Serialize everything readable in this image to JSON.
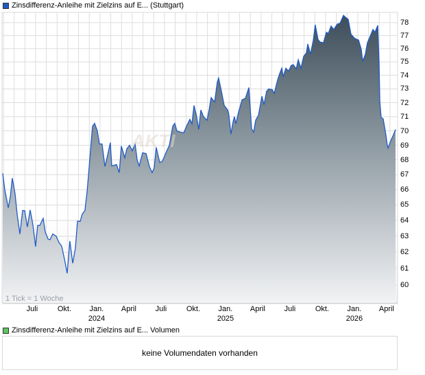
{
  "legend": {
    "price_label": "Zinsdifferenz-Anleihe mit Zielzins auf E... (Stuttgart)",
    "price_color": "#1f5bc6",
    "volume_label": "Zinsdifferenz-Anleihe mit Zielzins auf E... Volumen",
    "volume_color": "#5cc65c"
  },
  "watermark": "AKTIE",
  "tick_note": "1 Tick = 1 Woche",
  "volume_message": "keine Volumendaten vorhanden",
  "chart_data": {
    "type": "area",
    "title": "Zinsdifferenz-Anleihe mit Zielzins auf E... (Stuttgart)",
    "xlabel": "",
    "ylabel": "",
    "y_scale": "log",
    "ylim": [
      58.8,
      78.9
    ],
    "y_ticks": [
      60,
      61,
      62,
      63,
      64,
      65,
      66,
      67,
      68,
      69,
      70,
      71,
      72,
      73,
      74,
      75,
      76,
      77,
      78
    ],
    "x_unit": "decimal year",
    "xlim": [
      2023.245,
      2026.3
    ],
    "x_ticks": [
      {
        "t": 2023.5,
        "label": "Juli",
        "year": ""
      },
      {
        "t": 2023.75,
        "label": "Okt.",
        "year": ""
      },
      {
        "t": 2024.0,
        "label": "Jan.",
        "year": "2024"
      },
      {
        "t": 2024.25,
        "label": "April",
        "year": ""
      },
      {
        "t": 2024.5,
        "label": "Juli",
        "year": ""
      },
      {
        "t": 2024.75,
        "label": "Okt.",
        "year": ""
      },
      {
        "t": 2025.0,
        "label": "Jan.",
        "year": "2025"
      },
      {
        "t": 2025.25,
        "label": "April",
        "year": ""
      },
      {
        "t": 2025.5,
        "label": "Juli",
        "year": ""
      },
      {
        "t": 2025.75,
        "label": "Okt.",
        "year": ""
      },
      {
        "t": 2026.0,
        "label": "Jan.",
        "year": "2026"
      },
      {
        "t": 2026.25,
        "label": "April",
        "year": ""
      }
    ],
    "grid": true,
    "legend": "top-left",
    "series": [
      {
        "name": "Zinsdifferenz-Anleihe mit Zielzins auf E... (Stuttgart)",
        "color": "#1f5bc6",
        "points": [
          [
            2023.245,
            67.09
          ],
          [
            2023.261,
            66.0
          ],
          [
            2023.288,
            64.82
          ],
          [
            2023.304,
            65.55
          ],
          [
            2023.319,
            66.77
          ],
          [
            2023.341,
            65.73
          ],
          [
            2023.357,
            64.36
          ],
          [
            2023.378,
            63.14
          ],
          [
            2023.399,
            64.64
          ],
          [
            2023.415,
            64.64
          ],
          [
            2023.436,
            63.59
          ],
          [
            2023.458,
            64.68
          ],
          [
            2023.479,
            63.73
          ],
          [
            2023.5,
            62.35
          ],
          [
            2023.516,
            63.68
          ],
          [
            2023.532,
            63.68
          ],
          [
            2023.559,
            64.14
          ],
          [
            2023.575,
            63.27
          ],
          [
            2023.596,
            62.83
          ],
          [
            2023.612,
            62.78
          ],
          [
            2023.633,
            63.14
          ],
          [
            2023.66,
            63.0
          ],
          [
            2023.681,
            62.61
          ],
          [
            2023.702,
            62.39
          ],
          [
            2023.724,
            61.56
          ],
          [
            2023.745,
            60.71
          ],
          [
            2023.766,
            62.7
          ],
          [
            2023.788,
            61.32
          ],
          [
            2023.809,
            62.26
          ],
          [
            2023.825,
            63.95
          ],
          [
            2023.846,
            63.95
          ],
          [
            2023.862,
            64.41
          ],
          [
            2023.883,
            64.64
          ],
          [
            2023.899,
            65.86
          ],
          [
            2023.91,
            66.91
          ],
          [
            2023.931,
            69.23
          ],
          [
            2023.942,
            70.33
          ],
          [
            2023.958,
            70.53
          ],
          [
            2023.979,
            70.0
          ],
          [
            2023.995,
            69.09
          ],
          [
            2024.016,
            69.09
          ],
          [
            2024.038,
            67.55
          ],
          [
            2024.054,
            68.14
          ],
          [
            2024.08,
            69.18
          ],
          [
            2024.091,
            67.59
          ],
          [
            2024.128,
            67.68
          ],
          [
            2024.149,
            67.14
          ],
          [
            2024.165,
            68.95
          ],
          [
            2024.192,
            68.14
          ],
          [
            2024.208,
            68.76
          ],
          [
            2024.229,
            69.0
          ],
          [
            2024.25,
            68.62
          ],
          [
            2024.272,
            69.09
          ],
          [
            2024.288,
            68.0
          ],
          [
            2024.304,
            67.59
          ],
          [
            2024.33,
            68.48
          ],
          [
            2024.357,
            68.43
          ],
          [
            2024.383,
            67.55
          ],
          [
            2024.404,
            67.14
          ],
          [
            2024.42,
            67.45
          ],
          [
            2024.436,
            68.86
          ],
          [
            2024.463,
            67.82
          ],
          [
            2024.484,
            67.91
          ],
          [
            2024.511,
            68.48
          ],
          [
            2024.538,
            69.0
          ],
          [
            2024.564,
            70.33
          ],
          [
            2024.58,
            70.53
          ],
          [
            2024.596,
            70.0
          ],
          [
            2024.623,
            69.91
          ],
          [
            2024.649,
            69.86
          ],
          [
            2024.671,
            70.33
          ],
          [
            2024.697,
            70.81
          ],
          [
            2024.713,
            70.5
          ],
          [
            2024.729,
            71.81
          ],
          [
            2024.75,
            71.0
          ],
          [
            2024.766,
            70.1
          ],
          [
            2024.782,
            71.48
          ],
          [
            2024.803,
            71.0
          ],
          [
            2024.83,
            70.75
          ],
          [
            2024.846,
            71.48
          ],
          [
            2024.862,
            72.37
          ],
          [
            2024.889,
            72.05
          ],
          [
            2024.91,
            73.5
          ],
          [
            2024.92,
            73.8
          ],
          [
            2024.942,
            72.84
          ],
          [
            2024.963,
            71.81
          ],
          [
            2024.99,
            71.48
          ],
          [
            2025.0,
            71.14
          ],
          [
            2025.016,
            69.77
          ],
          [
            2025.032,
            70.65
          ],
          [
            2025.043,
            71.0
          ],
          [
            2025.054,
            70.5
          ],
          [
            2025.075,
            71.33
          ],
          [
            2025.102,
            72.21
          ],
          [
            2025.128,
            72.32
          ],
          [
            2025.155,
            73.1
          ],
          [
            2025.176,
            70.15
          ],
          [
            2025.192,
            69.91
          ],
          [
            2025.208,
            70.75
          ],
          [
            2025.229,
            71.1
          ],
          [
            2025.256,
            72.47
          ],
          [
            2025.272,
            71.86
          ],
          [
            2025.293,
            72.84
          ],
          [
            2025.309,
            73.0
          ],
          [
            2025.336,
            72.95
          ],
          [
            2025.352,
            72.68
          ],
          [
            2025.373,
            73.5
          ],
          [
            2025.389,
            74.0
          ],
          [
            2025.41,
            74.53
          ],
          [
            2025.421,
            73.9
          ],
          [
            2025.442,
            74.53
          ],
          [
            2025.463,
            74.32
          ],
          [
            2025.484,
            74.74
          ],
          [
            2025.5,
            74.79
          ],
          [
            2025.522,
            74.47
          ],
          [
            2025.538,
            75.16
          ],
          [
            2025.559,
            74.53
          ],
          [
            2025.58,
            75.42
          ],
          [
            2025.601,
            75.68
          ],
          [
            2025.612,
            76.35
          ],
          [
            2025.633,
            75.58
          ],
          [
            2025.654,
            76.6
          ],
          [
            2025.67,
            77.84
          ],
          [
            2025.692,
            76.7
          ],
          [
            2025.708,
            76.5
          ],
          [
            2025.734,
            76.45
          ],
          [
            2025.756,
            77.26
          ],
          [
            2025.771,
            77.16
          ],
          [
            2025.793,
            77.74
          ],
          [
            2025.814,
            77.47
          ],
          [
            2025.841,
            77.89
          ],
          [
            2025.862,
            77.95
          ],
          [
            2025.889,
            78.58
          ],
          [
            2025.905,
            78.42
          ],
          [
            2025.926,
            78.26
          ],
          [
            2025.947,
            77.11
          ],
          [
            2025.974,
            76.8
          ],
          [
            2026.006,
            76.65
          ],
          [
            2026.027,
            75.95
          ],
          [
            2026.038,
            75.05
          ],
          [
            2026.059,
            75.58
          ],
          [
            2026.075,
            76.45
          ],
          [
            2026.096,
            76.95
          ],
          [
            2026.118,
            77.47
          ],
          [
            2026.134,
            77.26
          ],
          [
            2026.155,
            77.79
          ],
          [
            2026.165,
            74.89
          ],
          [
            2026.171,
            72.1
          ],
          [
            2026.181,
            70.95
          ],
          [
            2026.197,
            70.85
          ],
          [
            2026.219,
            69.68
          ],
          [
            2026.229,
            69.0
          ],
          [
            2026.235,
            68.81
          ],
          [
            2026.256,
            69.32
          ],
          [
            2026.277,
            69.73
          ],
          [
            2026.293,
            70.1
          ]
        ]
      }
    ]
  }
}
